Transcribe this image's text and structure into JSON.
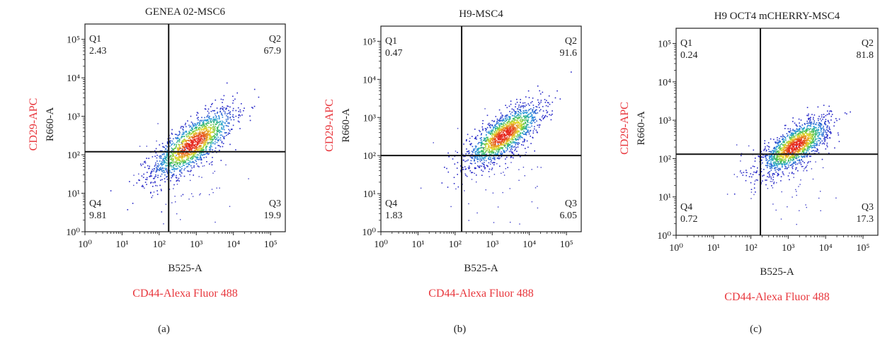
{
  "chart_data": [
    {
      "type": "scatter",
      "panel_label": "(a)",
      "title": "GENEA 02-MSC6",
      "xlabel": "B525-A",
      "ylabel": "R660-A",
      "xlabel_secondary": "CD44-Alexa Fluor 488",
      "ylabel_secondary": "CD29-APC",
      "x_scale": "log",
      "y_scale": "log",
      "xlim": [
        1,
        250000
      ],
      "ylim": [
        1,
        250000
      ],
      "x_ticks": [
        "10⁰",
        "10¹",
        "10²",
        "10³",
        "10⁴",
        "10⁵"
      ],
      "y_ticks": [
        "10⁰",
        "10¹",
        "10²",
        "10³",
        "10⁴",
        "10⁵"
      ],
      "gate": {
        "x": 180,
        "y": 120
      },
      "quadrants": [
        {
          "name": "Q1",
          "value": "2.43"
        },
        {
          "name": "Q2",
          "value": "67.9"
        },
        {
          "name": "Q3",
          "value": "19.9"
        },
        {
          "name": "Q4",
          "value": "9.81"
        }
      ],
      "population": {
        "center": [
          800,
          200
        ],
        "spread_decades": [
          0.55,
          0.45
        ],
        "corr": 0.75
      }
    },
    {
      "type": "scatter",
      "panel_label": "(b)",
      "title": "H9-MSC4",
      "xlabel": "B525-A",
      "ylabel": "R660-A",
      "xlabel_secondary": "CD44-Alexa Fluor 488",
      "ylabel_secondary": "CD29-APC",
      "x_scale": "log",
      "y_scale": "log",
      "xlim": [
        1,
        250000
      ],
      "ylim": [
        1,
        250000
      ],
      "x_ticks": [
        "10⁰",
        "10¹",
        "10²",
        "10³",
        "10⁴",
        "10⁵"
      ],
      "y_ticks": [
        "10⁰",
        "10¹",
        "10²",
        "10³",
        "10⁴",
        "10⁵"
      ],
      "gate": {
        "x": 150,
        "y": 100
      },
      "quadrants": [
        {
          "name": "Q1",
          "value": "0.47"
        },
        {
          "name": "Q2",
          "value": "91.6"
        },
        {
          "name": "Q3",
          "value": "6.05"
        },
        {
          "name": "Q4",
          "value": "1.83"
        }
      ],
      "population": {
        "center": [
          2000,
          350
        ],
        "spread_decades": [
          0.5,
          0.4
        ],
        "corr": 0.75
      }
    },
    {
      "type": "scatter",
      "panel_label": "(c)",
      "title": "H9 OCT4 mCHERRY-MSC4",
      "xlabel": "B525-A",
      "ylabel": "R660-A",
      "xlabel_secondary": "CD44-Alexa Fluor 488",
      "ylabel_secondary": "CD29-APC",
      "x_scale": "log",
      "y_scale": "log",
      "xlim": [
        1,
        250000
      ],
      "ylim": [
        1,
        250000
      ],
      "x_ticks": [
        "10⁰",
        "10¹",
        "10²",
        "10³",
        "10⁴",
        "10⁵"
      ],
      "y_ticks": [
        "10⁰",
        "10¹",
        "10²",
        "10³",
        "10⁴",
        "10⁵"
      ],
      "gate": {
        "x": 180,
        "y": 130
      },
      "quadrants": [
        {
          "name": "Q1",
          "value": "0.24"
        },
        {
          "name": "Q2",
          "value": "81.8"
        },
        {
          "name": "Q3",
          "value": "17.3"
        },
        {
          "name": "Q4",
          "value": "0.72"
        }
      ],
      "population": {
        "center": [
          1500,
          220
        ],
        "spread_decades": [
          0.45,
          0.35
        ],
        "corr": 0.7
      }
    }
  ]
}
